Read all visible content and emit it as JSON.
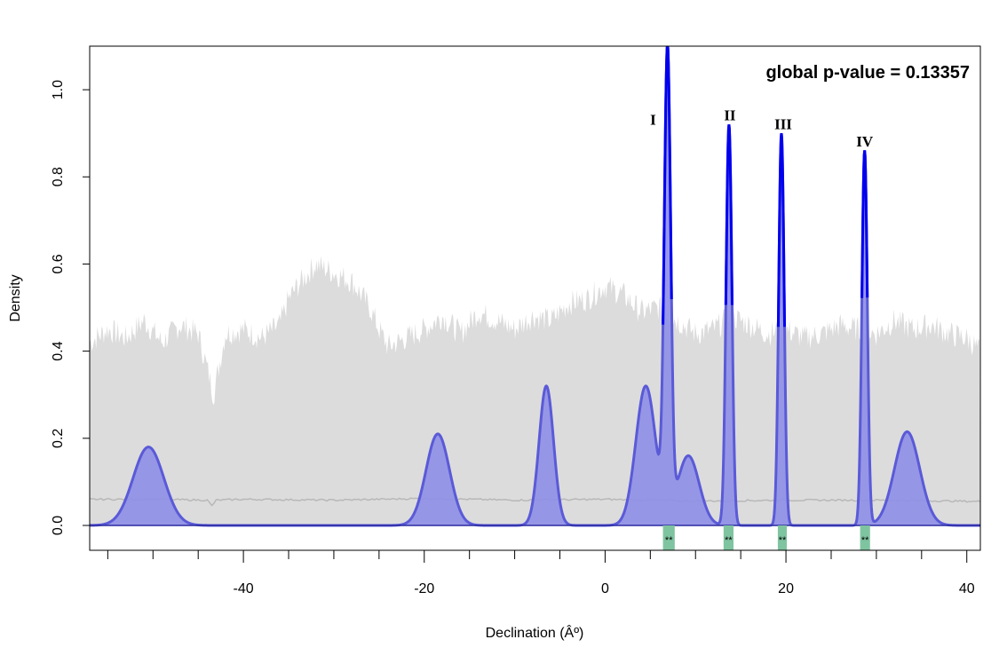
{
  "chart_data": {
    "type": "area",
    "xlabel": "Declination (Âº)",
    "ylabel": "Density",
    "xlim": [
      -57,
      41.5
    ],
    "ylim": [
      0,
      1.1
    ],
    "x_ticks": [
      -40,
      -20,
      0,
      20,
      40
    ],
    "x_minor_ticks": [
      -55,
      -50,
      -45,
      -35,
      -30,
      -25,
      -15,
      -10,
      -5,
      5,
      10,
      15,
      25,
      30,
      35
    ],
    "y_ticks": [
      0.0,
      0.2,
      0.4,
      0.6,
      0.8,
      1.0
    ],
    "y_tick_labels": [
      "0.0",
      "0.2",
      "0.4",
      "0.6",
      "0.8",
      "1.0"
    ],
    "annotation": "global p-value = 0.13357",
    "colors": {
      "null_band": "#dcdcdc",
      "null_mean": "#b8b8b8",
      "density_fill": "#8f8fe6",
      "density_line_low": "#5a5ad8",
      "density_line_high": "#0000ee",
      "significant": "#7fc4a0"
    },
    "null_band_upper": {
      "x": [
        -57,
        -55,
        -53,
        -51,
        -49,
        -47,
        -45,
        -44,
        -43.3,
        -42,
        -40,
        -38,
        -36,
        -35,
        -34,
        -32,
        -30,
        -28,
        -26,
        -25,
        -24,
        -22,
        -20,
        -18,
        -16,
        -14,
        -12,
        -10,
        -8,
        -6,
        -4,
        -2,
        0,
        2,
        4,
        6,
        8,
        10,
        12,
        14,
        16,
        18,
        20,
        22,
        24,
        26,
        28,
        30,
        32,
        34,
        36,
        38,
        40,
        41.5
      ],
      "y": [
        0.42,
        0.45,
        0.43,
        0.47,
        0.42,
        0.46,
        0.44,
        0.36,
        0.3,
        0.44,
        0.45,
        0.43,
        0.46,
        0.52,
        0.55,
        0.6,
        0.58,
        0.56,
        0.5,
        0.45,
        0.41,
        0.43,
        0.45,
        0.48,
        0.44,
        0.49,
        0.47,
        0.45,
        0.48,
        0.47,
        0.51,
        0.52,
        0.55,
        0.53,
        0.49,
        0.5,
        0.47,
        0.44,
        0.45,
        0.48,
        0.46,
        0.44,
        0.45,
        0.43,
        0.44,
        0.46,
        0.45,
        0.44,
        0.47,
        0.45,
        0.46,
        0.44,
        0.43,
        0.4
      ]
    },
    "null_mean": {
      "x": [
        -57,
        -50,
        -44,
        -43.5,
        -43,
        -40,
        -30,
        -20,
        -10,
        0,
        5,
        10,
        20,
        30,
        35,
        41.5
      ],
      "y": [
        0.06,
        0.06,
        0.058,
        0.045,
        0.058,
        0.06,
        0.058,
        0.062,
        0.058,
        0.06,
        0.058,
        0.056,
        0.058,
        0.058,
        0.057,
        0.055
      ]
    },
    "observed_density": {
      "peaks": [
        {
          "center": -50.5,
          "height": 0.18,
          "sd": 1.7
        },
        {
          "center": -18.5,
          "height": 0.21,
          "sd": 1.3
        },
        {
          "center": -6.5,
          "height": 0.32,
          "sd": 0.8
        },
        {
          "center": 4.5,
          "height": 0.32,
          "sd": 1.1
        },
        {
          "center": 6.9,
          "height": 1.05,
          "sd": 0.35
        },
        {
          "center": 9.2,
          "height": 0.16,
          "sd": 1.2
        },
        {
          "center": 13.7,
          "height": 0.92,
          "sd": 0.32
        },
        {
          "center": 19.5,
          "height": 0.9,
          "sd": 0.3
        },
        {
          "center": 28.7,
          "height": 0.86,
          "sd": 0.3
        },
        {
          "center": 33.4,
          "height": 0.215,
          "sd": 1.4
        }
      ]
    },
    "peak_labels": [
      {
        "text": "I",
        "x": 5.3,
        "y": 0.92
      },
      {
        "text": "II",
        "x": 13.8,
        "y": 0.93
      },
      {
        "text": "III",
        "x": 19.7,
        "y": 0.91
      },
      {
        "text": "IV",
        "x": 28.7,
        "y": 0.87
      }
    ],
    "significant_ranges": [
      {
        "from": 6.4,
        "to": 7.7,
        "label": "**"
      },
      {
        "from": 13.1,
        "to": 14.2,
        "label": "**"
      },
      {
        "from": 19.1,
        "to": 20.1,
        "label": "**"
      },
      {
        "from": 28.2,
        "to": 29.3,
        "label": "**"
      }
    ]
  }
}
